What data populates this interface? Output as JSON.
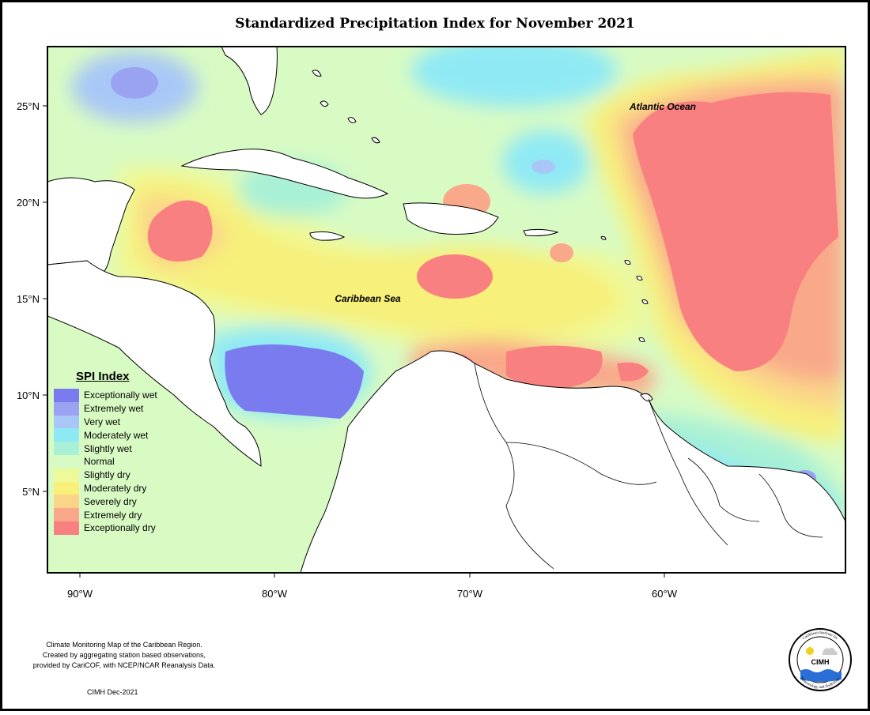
{
  "title": "Standardized Precipitation Index for November 2021",
  "map": {
    "x_ticks": [
      "90°W",
      "80°W",
      "70°W",
      "60°W"
    ],
    "y_ticks": [
      "25°N",
      "20°N",
      "15°N",
      "10°N",
      "5°N"
    ],
    "labels": {
      "atlantic": "Atlantic Ocean",
      "caribbean": "Caribbean Sea"
    }
  },
  "legend": {
    "title": "SPI Index",
    "items": [
      {
        "label": "Exceptionally wet",
        "color": "#7b7bf0"
      },
      {
        "label": "Extremely wet",
        "color": "#9aa3f2"
      },
      {
        "label": "Very wet",
        "color": "#a9c7f6"
      },
      {
        "label": "Moderately wet",
        "color": "#8fe9f5"
      },
      {
        "label": "Slightly wet",
        "color": "#a8f0d6"
      },
      {
        "label": "Normal",
        "color": "#d8fbc4"
      },
      {
        "label": "Slightly dry",
        "color": "#eef99a"
      },
      {
        "label": "Moderately dry",
        "color": "#f7f07a"
      },
      {
        "label": "Severely dry",
        "color": "#fbd48a"
      },
      {
        "label": "Extremely dry",
        "color": "#f9a98a"
      },
      {
        "label": "Exceptionally dry",
        "color": "#f88080"
      }
    ]
  },
  "credits": {
    "line1": "Climate Monitoring Map of the Caribbean Region.",
    "line2": "Created by aggregating station based observations,",
    "line3": "provided by CariCOF, with NCEP/NCAR Reanalysis Data.",
    "date": "CIMH Dec-2021"
  },
  "logo": {
    "ring_text_top": "Caribbean Institute for",
    "center": "CIMH",
    "ring_text_bottom": "Meteorology and Hydrology"
  }
}
